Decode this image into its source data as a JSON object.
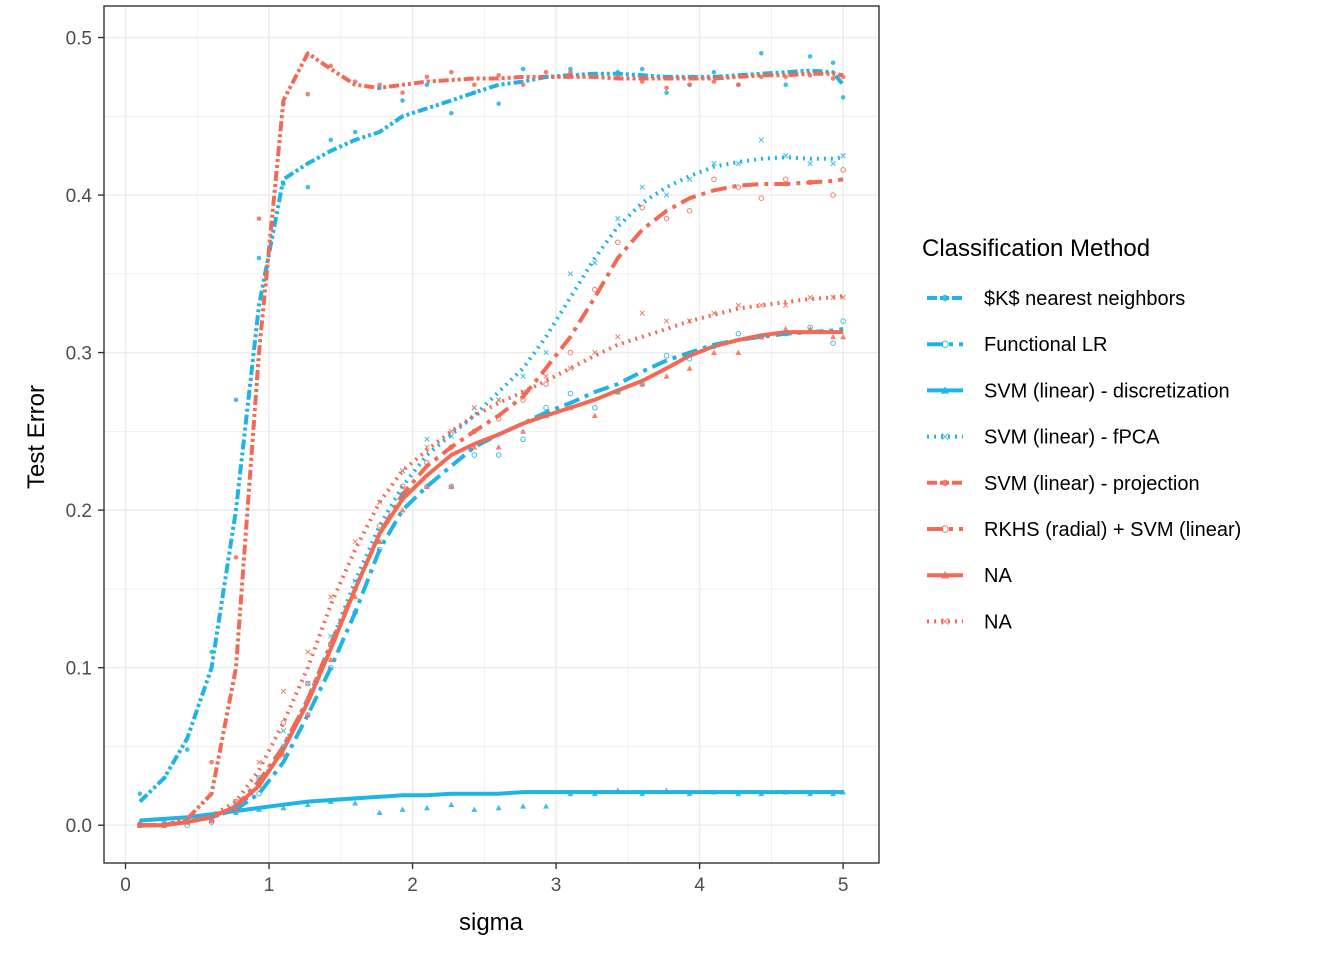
{
  "colors": {
    "blue": "#1fb3e6",
    "red": "#f26a55",
    "grid": "#ebebeb",
    "border": "#333333"
  },
  "chart_data": {
    "type": "line",
    "xlabel": "sigma",
    "ylabel": "Test Error",
    "xlim": [
      -0.15,
      5.25
    ],
    "ylim": [
      -0.024,
      0.52
    ],
    "x_ticks": [
      0,
      1,
      2,
      3,
      4,
      5
    ],
    "x_tick_labels": [
      "0",
      "1",
      "2",
      "3",
      "4",
      "5"
    ],
    "y_ticks": [
      0.0,
      0.1,
      0.2,
      0.3,
      0.4,
      0.5
    ],
    "y_tick_labels": [
      "0.0",
      "0.1",
      "0.2",
      "0.3",
      "0.4",
      "0.5"
    ],
    "grid": true,
    "legend": {
      "title": "Classification Method",
      "position": "right",
      "entries": [
        {
          "label": "$K$ nearest neighbors",
          "color": "#1fb3e6",
          "dash": "10 3 3 3 3 3",
          "shape": "dot"
        },
        {
          "label": "Functional LR",
          "color": "#1fb3e6",
          "dash": "16 6 4 6",
          "shape": "circle"
        },
        {
          "label": "SVM (linear) - discretization",
          "color": "#1fb3e6",
          "dash": "",
          "shape": "triangle"
        },
        {
          "label": "SVM (linear) - fPCA",
          "color": "#1fb3e6",
          "dash": "2 5",
          "shape": "x"
        },
        {
          "label": "SVM (linear) - projection",
          "color": "#f26a55",
          "dash": "10 3 3 3 3 3",
          "shape": "dot"
        },
        {
          "label": "RKHS (radial) + SVM (linear)",
          "color": "#f26a55",
          "dash": "16 6 4 6",
          "shape": "circle"
        },
        {
          "label": "NA",
          "color": "#f26a55",
          "dash": "",
          "shape": "triangle"
        },
        {
          "label": "NA",
          "color": "#f26a55",
          "dash": "2 5",
          "shape": "x"
        }
      ]
    },
    "x": [
      0.1,
      0.27,
      0.43,
      0.6,
      0.77,
      0.93,
      1.1,
      1.27,
      1.43,
      1.6,
      1.77,
      1.93,
      2.1,
      2.27,
      2.43,
      2.6,
      2.77,
      2.93,
      3.1,
      3.27,
      3.43,
      3.6,
      3.77,
      3.93,
      4.1,
      4.27,
      4.43,
      4.6,
      4.77,
      4.93,
      5.0
    ],
    "series": [
      {
        "color": "#1fb3e6",
        "dash": "10 3 3 3 3 3",
        "shape": "dot",
        "values": [
          0.015,
          0.03,
          0.055,
          0.1,
          0.2,
          0.33,
          0.41,
          0.42,
          0.428,
          0.435,
          0.44,
          0.45,
          0.455,
          0.46,
          0.465,
          0.47,
          0.472,
          0.475,
          0.476,
          0.477,
          0.477,
          0.476,
          0.475,
          0.475,
          0.475,
          0.476,
          0.477,
          0.478,
          0.479,
          0.478,
          0.47
        ],
        "points": [
          0.02,
          0.03,
          0.048,
          0.11,
          0.27,
          0.36,
          0.407,
          0.405,
          0.435,
          0.44,
          0.468,
          0.46,
          0.47,
          0.452,
          0.465,
          0.458,
          0.48,
          0.475,
          0.48,
          0.475,
          0.478,
          0.48,
          0.465,
          0.47,
          0.478,
          0.47,
          0.49,
          0.47,
          0.488,
          0.484,
          0.462
        ]
      },
      {
        "color": "#1fb3e6",
        "dash": "16 6 4 6",
        "shape": "circle",
        "values": [
          0.0,
          0.0,
          0.002,
          0.005,
          0.01,
          0.02,
          0.04,
          0.07,
          0.1,
          0.135,
          0.175,
          0.2,
          0.215,
          0.228,
          0.24,
          0.248,
          0.255,
          0.262,
          0.268,
          0.275,
          0.28,
          0.288,
          0.295,
          0.3,
          0.305,
          0.308,
          0.31,
          0.312,
          0.313,
          0.314,
          0.315
        ],
        "points": [
          0.0,
          0.0,
          0.0,
          0.002,
          0.01,
          0.02,
          0.05,
          0.07,
          0.1,
          0.135,
          0.175,
          0.21,
          0.215,
          0.215,
          0.235,
          0.235,
          0.245,
          0.265,
          0.274,
          0.265,
          0.275,
          0.28,
          0.298,
          0.296,
          0.304,
          0.312,
          0.31,
          0.312,
          0.316,
          0.306,
          0.32
        ]
      },
      {
        "color": "#1fb3e6",
        "dash": "",
        "shape": "triangle",
        "values": [
          0.003,
          0.004,
          0.005,
          0.007,
          0.009,
          0.011,
          0.013,
          0.015,
          0.016,
          0.017,
          0.018,
          0.019,
          0.019,
          0.02,
          0.02,
          0.02,
          0.021,
          0.021,
          0.021,
          0.021,
          0.021,
          0.021,
          0.021,
          0.021,
          0.021,
          0.021,
          0.021,
          0.021,
          0.021,
          0.021,
          0.021
        ],
        "points": [
          0.002,
          0.003,
          0.004,
          0.006,
          0.008,
          0.01,
          0.011,
          0.013,
          0.015,
          0.014,
          0.008,
          0.01,
          0.011,
          0.013,
          0.01,
          0.011,
          0.012,
          0.012,
          0.02,
          0.02,
          0.022,
          0.02,
          0.022,
          0.02,
          0.021,
          0.02,
          0.02,
          0.021,
          0.02,
          0.02,
          0.021
        ]
      },
      {
        "color": "#1fb3e6",
        "dash": "2 5",
        "shape": "x",
        "values": [
          0.0,
          0.0,
          0.002,
          0.005,
          0.01,
          0.025,
          0.05,
          0.08,
          0.115,
          0.155,
          0.19,
          0.215,
          0.235,
          0.248,
          0.26,
          0.275,
          0.29,
          0.31,
          0.335,
          0.36,
          0.38,
          0.395,
          0.405,
          0.412,
          0.418,
          0.421,
          0.423,
          0.424,
          0.423,
          0.423,
          0.424
        ],
        "points": [
          0.0,
          0.0,
          0.002,
          0.004,
          0.012,
          0.03,
          0.06,
          0.09,
          0.12,
          0.155,
          0.18,
          0.225,
          0.245,
          0.247,
          0.265,
          0.27,
          0.285,
          0.3,
          0.35,
          0.357,
          0.385,
          0.405,
          0.4,
          0.41,
          0.42,
          0.42,
          0.435,
          0.425,
          0.42,
          0.42,
          0.425
        ]
      },
      {
        "color": "#f26a55",
        "dash": "10 3 3 3 3 3",
        "shape": "dot",
        "values": [
          0.0,
          0.0,
          0.004,
          0.02,
          0.1,
          0.3,
          0.46,
          0.49,
          0.48,
          0.47,
          0.468,
          0.47,
          0.472,
          0.473,
          0.474,
          0.474,
          0.475,
          0.475,
          0.475,
          0.475,
          0.474,
          0.474,
          0.474,
          0.474,
          0.474,
          0.475,
          0.476,
          0.476,
          0.477,
          0.477,
          0.476
        ],
        "points": [
          0.0,
          0.0,
          0.002,
          0.04,
          0.17,
          0.385,
          0.458,
          0.464,
          0.482,
          0.472,
          0.47,
          0.465,
          0.475,
          0.478,
          0.47,
          0.476,
          0.47,
          0.478,
          0.478,
          0.475,
          0.475,
          0.472,
          0.468,
          0.47,
          0.472,
          0.47,
          0.475,
          0.475,
          0.476,
          0.474,
          0.475
        ]
      },
      {
        "color": "#f26a55",
        "dash": "16 6 4 6",
        "shape": "circle",
        "values": [
          0.0,
          0.0,
          0.002,
          0.005,
          0.012,
          0.028,
          0.05,
          0.08,
          0.115,
          0.15,
          0.185,
          0.21,
          0.228,
          0.24,
          0.25,
          0.26,
          0.272,
          0.29,
          0.31,
          0.335,
          0.36,
          0.378,
          0.39,
          0.398,
          0.403,
          0.406,
          0.407,
          0.407,
          0.408,
          0.409,
          0.41
        ],
        "points": [
          0.0,
          0.0,
          0.002,
          0.003,
          0.015,
          0.03,
          0.065,
          0.09,
          0.115,
          0.15,
          0.19,
          0.215,
          0.23,
          0.24,
          0.25,
          0.258,
          0.27,
          0.28,
          0.3,
          0.34,
          0.37,
          0.392,
          0.385,
          0.39,
          0.41,
          0.405,
          0.398,
          0.41,
          0.408,
          0.4,
          0.416
        ]
      },
      {
        "color": "#f26a55",
        "dash": "",
        "shape": "triangle",
        "values": [
          0.0,
          0.0,
          0.002,
          0.005,
          0.012,
          0.025,
          0.048,
          0.078,
          0.112,
          0.15,
          0.185,
          0.207,
          0.222,
          0.235,
          0.242,
          0.248,
          0.255,
          0.26,
          0.265,
          0.27,
          0.276,
          0.282,
          0.29,
          0.298,
          0.304,
          0.308,
          0.311,
          0.313,
          0.313,
          0.313,
          0.313
        ],
        "points": [
          0.0,
          0.0,
          0.002,
          0.003,
          0.01,
          0.025,
          0.045,
          0.07,
          0.105,
          0.145,
          0.18,
          0.2,
          0.215,
          0.215,
          0.24,
          0.24,
          0.25,
          0.26,
          0.265,
          0.26,
          0.275,
          0.28,
          0.285,
          0.29,
          0.3,
          0.3,
          0.31,
          0.315,
          0.315,
          0.31,
          0.31
        ]
      },
      {
        "color": "#f26a55",
        "dash": "2 5",
        "shape": "x",
        "values": [
          0.0,
          0.0,
          0.002,
          0.006,
          0.015,
          0.035,
          0.065,
          0.1,
          0.14,
          0.175,
          0.205,
          0.225,
          0.238,
          0.25,
          0.26,
          0.268,
          0.275,
          0.282,
          0.29,
          0.298,
          0.305,
          0.31,
          0.315,
          0.32,
          0.324,
          0.328,
          0.33,
          0.332,
          0.334,
          0.335,
          0.336
        ],
        "points": [
          0.0,
          0.0,
          0.002,
          0.004,
          0.015,
          0.04,
          0.085,
          0.11,
          0.145,
          0.18,
          0.205,
          0.225,
          0.24,
          0.25,
          0.265,
          0.27,
          0.275,
          0.285,
          0.29,
          0.3,
          0.31,
          0.325,
          0.32,
          0.32,
          0.325,
          0.33,
          0.33,
          0.33,
          0.335,
          0.335,
          0.335
        ]
      }
    ]
  }
}
